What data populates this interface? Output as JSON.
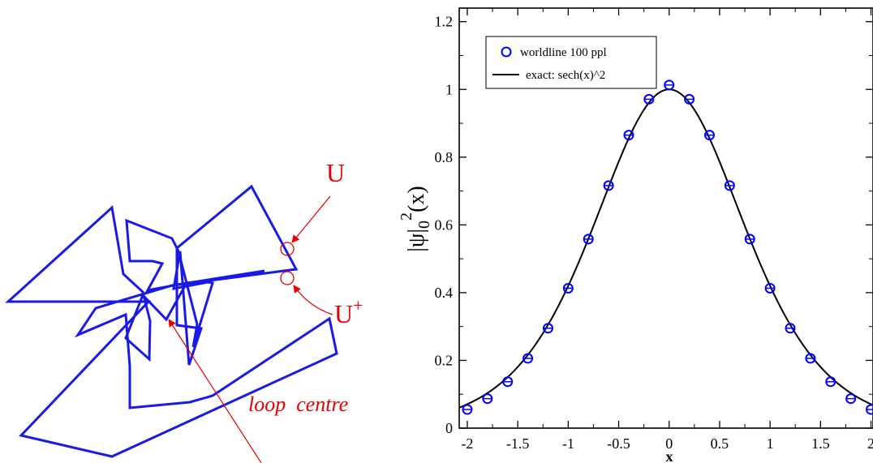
{
  "colors": {
    "loop": "#1a1ae6",
    "annotation": "#e60000",
    "marker": "#0000ff",
    "curve": "#000000",
    "axis": "#000000"
  },
  "diagram": {
    "label_u": "U",
    "label_u_plus": "U",
    "label_u_plus_sup": "+",
    "label_loop_centre": "loop  centre"
  },
  "chart_data": {
    "type": "scatter",
    "title": "",
    "xlabel": "x",
    "ylabel": {
      "pre": "|ψ|",
      "sub": "0",
      "sup": "2",
      "post": "(x)"
    },
    "xlim": [
      -2.08,
      2.02
    ],
    "ylim": [
      0,
      1.24
    ],
    "xticks": [
      -2,
      -1.5,
      -1,
      -0.5,
      0,
      0.5,
      1,
      1.5,
      2
    ],
    "xtick_labels": [
      "-2",
      "-1.5",
      "-1",
      "-0.5",
      "0",
      "0.5",
      "1",
      "1.5",
      "2"
    ],
    "yticks": [
      0,
      0.2,
      0.4,
      0.6,
      0.8,
      1.0,
      1.2
    ],
    "ytick_labels": [
      "0",
      "0.2",
      "0.4",
      "0.6",
      "0.8",
      "1",
      "1.2"
    ],
    "legend_position": "top-left",
    "series": [
      {
        "name": "worldline 100 ppl",
        "kind": "markers",
        "marker": "circle-with-errorbar",
        "x": [
          -2.0,
          -1.8,
          -1.6,
          -1.4,
          -1.2,
          -1.0,
          -0.8,
          -0.6,
          -0.4,
          -0.2,
          0.0,
          0.2,
          0.4,
          0.6,
          0.8,
          1.0,
          1.2,
          1.4,
          1.6,
          1.8,
          2.0
        ],
        "y": [
          0.055,
          0.087,
          0.137,
          0.206,
          0.295,
          0.413,
          0.558,
          0.716,
          0.865,
          0.971,
          1.013,
          0.971,
          0.865,
          0.716,
          0.558,
          0.413,
          0.295,
          0.206,
          0.137,
          0.087,
          0.055
        ]
      },
      {
        "name": "exact: sech(x)^2",
        "kind": "line",
        "function": "sech(x)^2"
      }
    ]
  }
}
